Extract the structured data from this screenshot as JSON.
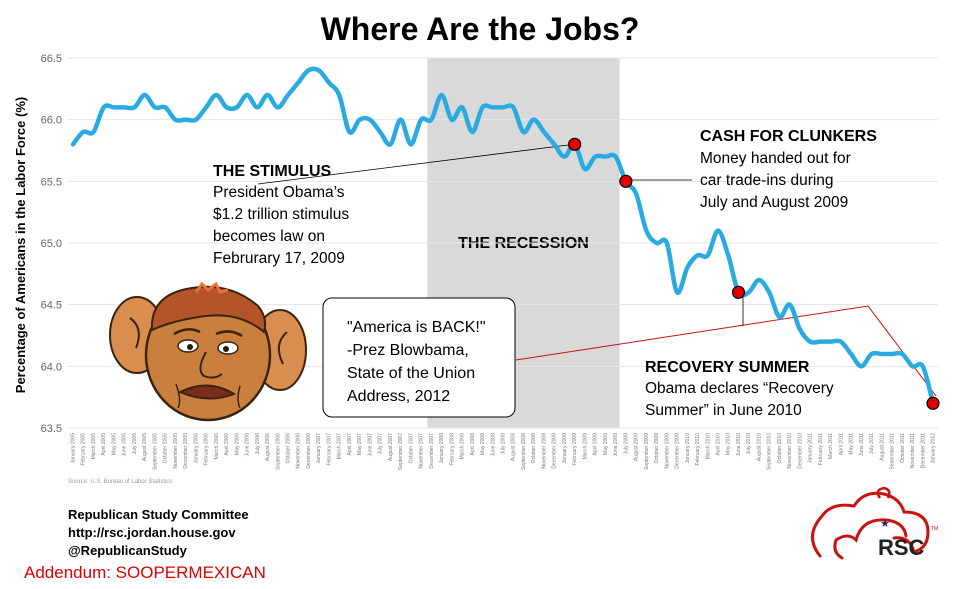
{
  "chart_data": {
    "type": "line",
    "title": "Where Are the Jobs?",
    "ylabel": "Percentage of Americans in the Labor Force (%)",
    "ylim": [
      63.5,
      66.5
    ],
    "yticks": [
      "63.5",
      "64.0",
      "64.5",
      "65.0",
      "65.5",
      "66.0",
      "66.5"
    ],
    "shaded_region": {
      "label": "THE RECESSION",
      "from": "December 2007",
      "to": "June 2009"
    },
    "line_color": "#29abe2",
    "x": [
      "January 2005",
      "February 2005",
      "March 2005",
      "April 2005",
      "May 2005",
      "June 2005",
      "July 2005",
      "August 2005",
      "September 2005",
      "October 2005",
      "November 2005",
      "December 2005",
      "January 2006",
      "February 2006",
      "March 2006",
      "April 2006",
      "May 2006",
      "June 2006",
      "July 2006",
      "August 2006",
      "September 2006",
      "October 2006",
      "November 2006",
      "December 2006",
      "January 2007",
      "February 2007",
      "March 2007",
      "April 2007",
      "May 2007",
      "June 2007",
      "July 2007",
      "August 2007",
      "September 2007",
      "October 2007",
      "November 2007",
      "December 2007",
      "January 2008",
      "February 2008",
      "March 2008",
      "April 2008",
      "May 2008",
      "June 2008",
      "July 2008",
      "August 2008",
      "September 2008",
      "October 2008",
      "November 2008",
      "December 2008",
      "January 2009",
      "February 2009",
      "March 2009",
      "April 2009",
      "May 2009",
      "June 2009",
      "July 2009",
      "August 2009",
      "September 2009",
      "October 2009",
      "November 2009",
      "December 2009",
      "January 2010",
      "February 2010",
      "March 2010",
      "April 2010",
      "May 2010",
      "June 2010",
      "July 2010",
      "August 2010",
      "September 2010",
      "October 2010",
      "November 2010",
      "December 2010",
      "January 2011",
      "February 2011",
      "March 2011",
      "April 2011",
      "May 2011",
      "June 2011",
      "July 2011",
      "August 2011",
      "September 2011",
      "October 2011",
      "November 2011",
      "December 2011",
      "January 2012"
    ],
    "series": [
      {
        "values": [
          65.8,
          65.9,
          65.9,
          66.1,
          66.1,
          66.1,
          66.1,
          66.2,
          66.1,
          66.1,
          66.0,
          66.0,
          66.0,
          66.1,
          66.2,
          66.1,
          66.1,
          66.2,
          66.1,
          66.2,
          66.1,
          66.2,
          66.3,
          66.4,
          66.4,
          66.3,
          66.2,
          65.9,
          66.0,
          66.0,
          65.9,
          65.8,
          66.0,
          65.8,
          66.0,
          66.0,
          66.2,
          66.0,
          66.1,
          65.9,
          66.1,
          66.1,
          66.1,
          66.1,
          65.9,
          66.0,
          65.9,
          65.8,
          65.7,
          65.8,
          65.6,
          65.7,
          65.7,
          65.7,
          65.5,
          65.4,
          65.1,
          65.0,
          65.0,
          64.6,
          64.8,
          64.9,
          64.9,
          65.1,
          64.9,
          64.6,
          64.6,
          64.7,
          64.6,
          64.4,
          64.5,
          64.3,
          64.2,
          64.2,
          64.2,
          64.2,
          64.1,
          64.0,
          64.1,
          64.1,
          64.1,
          64.1,
          64.0,
          64.0,
          63.7
        ]
      }
    ],
    "markers": [
      {
        "x": "February 2009",
        "y": 65.8
      },
      {
        "x": "July 2009",
        "y": 65.5
      },
      {
        "x": "June 2010",
        "y": 64.6
      },
      {
        "x": "January 2012",
        "y": 63.7
      }
    ],
    "annotations": {
      "stimulus": {
        "heading": "THE STIMULUS",
        "lines": [
          "President Obama’s",
          "$1.2 trillion stimulus",
          "becomes law on",
          "Februrary 17, 2009"
        ]
      },
      "clunkers": {
        "heading": "CASH FOR CLUNKERS",
        "lines": [
          "Money handed out for",
          "car trade-ins during",
          "July and August 2009"
        ]
      },
      "recovery": {
        "heading": "RECOVERY SUMMER",
        "lines": [
          "Obama declares “Recovery",
          "Summer” in June 2010"
        ]
      },
      "quote": {
        "lines": [
          "\"America is BACK!\"",
          "-Prez Blowbama,",
          "State of the Union",
          "Address, 2012"
        ]
      }
    },
    "source": "Source: U.S. Bureau of Labor Statistics"
  },
  "footer": {
    "org": "Republican Study Committee",
    "url": "http://rsc.jordan.house.gov",
    "handle": "@RepublicanStudy",
    "addendum": "Addendum: SOOPERMEXICAN"
  },
  "logo": {
    "text": "RSC",
    "tm": "TM",
    "color": "#cc1111"
  },
  "cartoon": {
    "name": "caricature-face"
  }
}
